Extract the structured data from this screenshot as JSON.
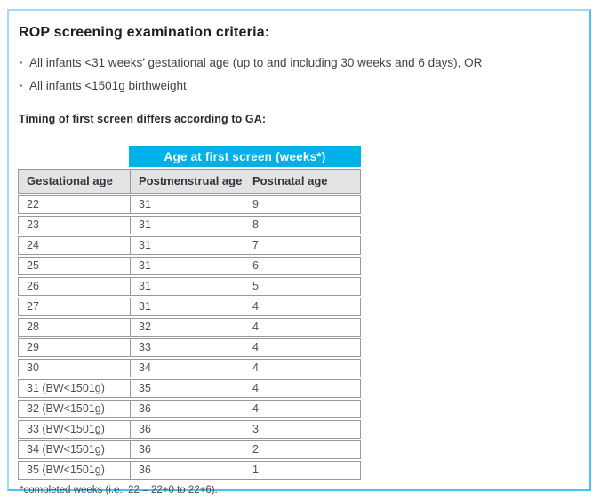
{
  "panel": {
    "title": "ROP screening examination criteria:",
    "bullet_glyph": "·",
    "bullets": [
      "All infants <31 weeks’ gestational age (up to and including 30 weeks and 6 days), OR",
      "All infants <1501g birthweight"
    ],
    "subtitle": "Timing of first screen differs according to GA:"
  },
  "table": {
    "banner": "Age at first screen (weeks*)",
    "columns": [
      "Gestational age",
      "Postmenstrual age",
      "Postnatal age"
    ],
    "rows": [
      [
        "22",
        "31",
        "9"
      ],
      [
        "23",
        "31",
        "8"
      ],
      [
        "24",
        "31",
        "7"
      ],
      [
        "25",
        "31",
        "6"
      ],
      [
        "26",
        "31",
        "5"
      ],
      [
        "27",
        "31",
        "4"
      ],
      [
        "28",
        "32",
        "4"
      ],
      [
        "29",
        "33",
        "4"
      ],
      [
        "30",
        "34",
        "4"
      ],
      [
        "31 (BW<1501g)",
        "35",
        "4"
      ],
      [
        "32 (BW<1501g)",
        "36",
        "4"
      ],
      [
        "33 (BW<1501g)",
        "36",
        "3"
      ],
      [
        "34 (BW<1501g)",
        "36",
        "2"
      ],
      [
        "35 (BW<1501g)",
        "36",
        "1"
      ]
    ],
    "footnote": "*completed weeks (i.e., 22 = 22+0 to 22+6)."
  },
  "colors": {
    "accent_cyan": "#00b0e8",
    "header_row_gray": "#e2e3e5",
    "cell_border_gray": "#98999b",
    "panel_border_light": "#9edcf2",
    "panel_border_dark": "#4cc3ed"
  }
}
